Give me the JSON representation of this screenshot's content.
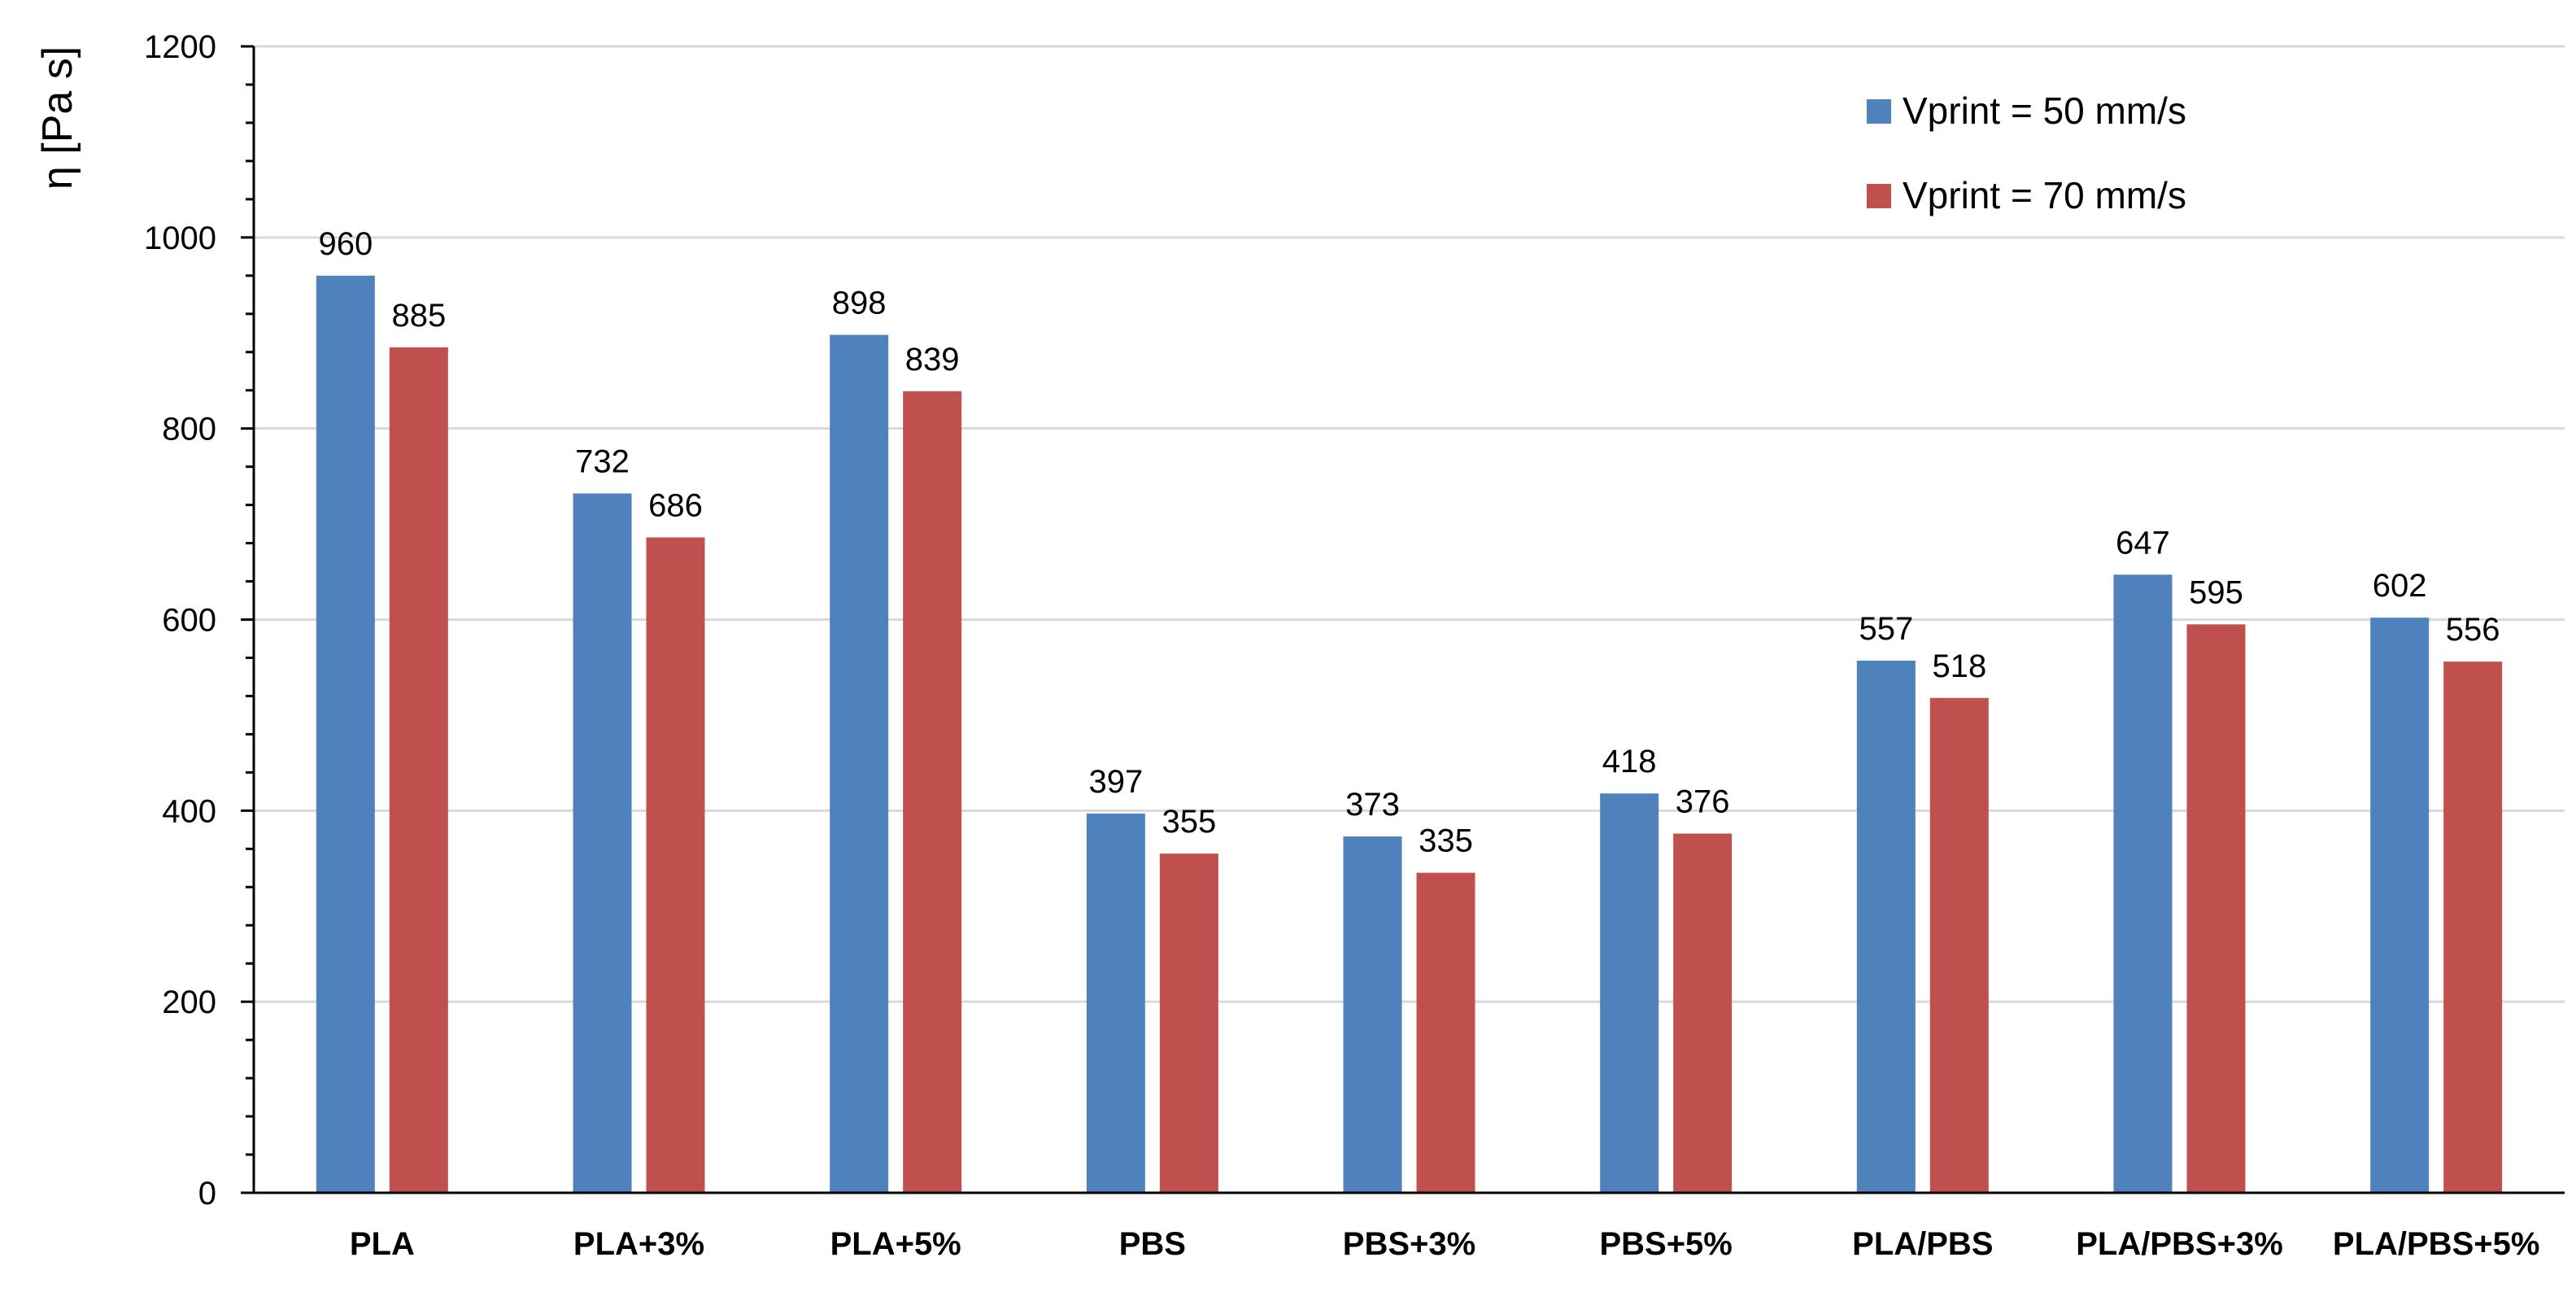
{
  "chart_data": {
    "type": "bar",
    "title": "",
    "xlabel": "",
    "ylabel": "η [Pa s]",
    "ylim": [
      0,
      1200
    ],
    "yticks": [
      0,
      200,
      400,
      600,
      800,
      1000,
      1200
    ],
    "grid": true,
    "legend_position": "top-right",
    "categories": [
      "PLA",
      "PLA+3%",
      "PLA+5%",
      "PBS",
      "PBS+3%",
      "PBS+5%",
      "PLA/PBS",
      "PLA/PBS+3%",
      "PLA/PBS+5%"
    ],
    "series": [
      {
        "name": "Vprint = 50 mm/s",
        "color": "#4F81BD",
        "values": [
          960,
          732,
          898,
          397,
          373,
          418,
          557,
          647,
          602
        ]
      },
      {
        "name": "Vprint = 70 mm/s",
        "color": "#C0504D",
        "values": [
          885,
          686,
          839,
          355,
          335,
          376,
          518,
          595,
          556
        ]
      }
    ]
  }
}
